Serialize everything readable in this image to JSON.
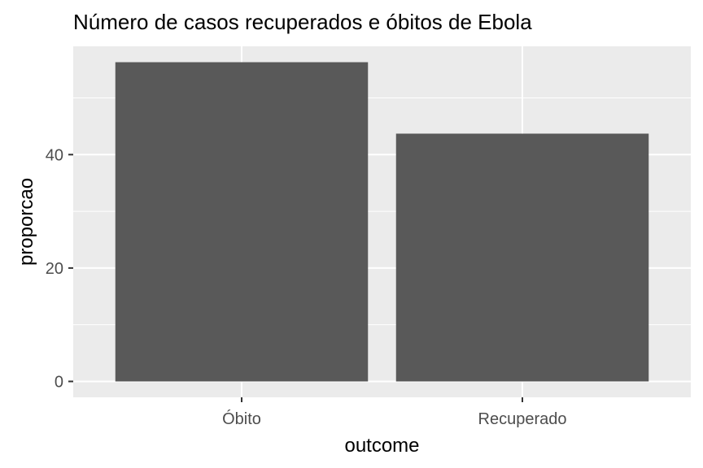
{
  "chart_data": {
    "type": "bar",
    "title": "Número de casos recuperados e óbitos de Ebola",
    "xlabel": "outcome",
    "ylabel": "proporcao",
    "categories": [
      "Óbito",
      "Recuperado"
    ],
    "values": [
      56.3,
      43.7
    ],
    "ylim": [
      -2.8,
      59.1
    ],
    "yticks": [
      0,
      20,
      40
    ],
    "grid": true,
    "colors": {
      "bar": "#595959",
      "panel": "#ebebeb",
      "grid": "#ffffff",
      "ticks": "#333333"
    }
  }
}
